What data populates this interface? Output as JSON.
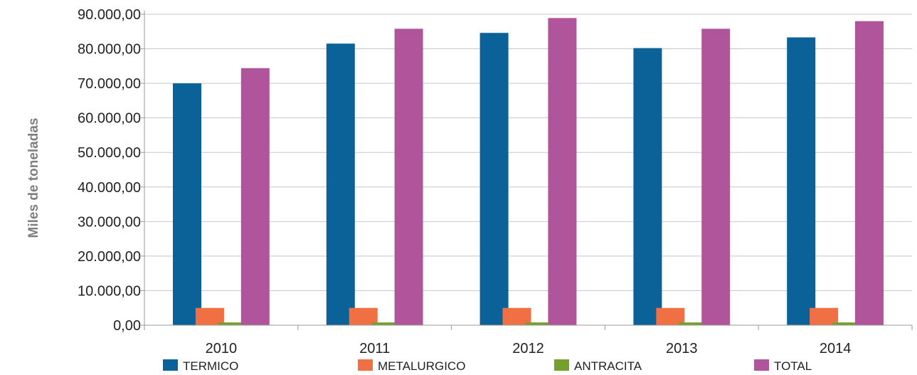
{
  "chart_data": {
    "type": "bar",
    "categories": [
      "2010",
      "2011",
      "2012",
      "2013",
      "2014"
    ],
    "series": [
      {
        "name": "TERMICO",
        "color": "#0a6299",
        "values": [
          70000,
          81500,
          84600,
          80200,
          83300
        ]
      },
      {
        "name": "METALURGICO",
        "color": "#f07043",
        "values": [
          5000,
          5000,
          5000,
          5000,
          5000
        ]
      },
      {
        "name": "ANTRACITA",
        "color": "#74a12e",
        "values": [
          800,
          800,
          800,
          800,
          800
        ]
      },
      {
        "name": "TOTAL",
        "color": "#b0559b",
        "values": [
          74400,
          85800,
          88900,
          85800,
          88000
        ]
      }
    ],
    "title": "",
    "xlabel": "",
    "ylabel": "Miles de toneladas",
    "ylim": [
      0,
      90000
    ],
    "yticks": [
      "0,00",
      "10.000,00",
      "20.000,00",
      "30.000,00",
      "40.000,00",
      "50.000,00",
      "60.000,00",
      "70.000,00",
      "80.000,00",
      "90.000,00"
    ],
    "grid": true,
    "legend": "bottom"
  }
}
